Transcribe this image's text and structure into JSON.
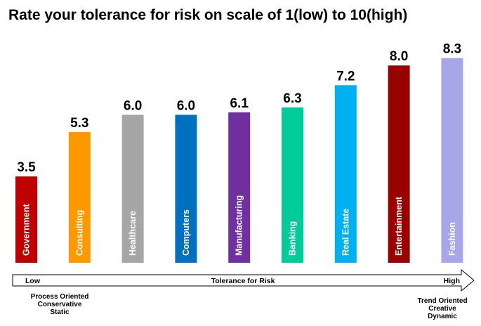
{
  "chart_data": {
    "type": "bar",
    "title": "Rate your tolerance for risk on scale of 1(low) to 10(high)",
    "categories": [
      "Government",
      "Consulting",
      "Healthcare",
      "Computers",
      "Manufacturing",
      "Banking",
      "Real Estate",
      "Entertainment",
      "Fashion"
    ],
    "values": [
      3.5,
      5.3,
      6.0,
      6.0,
      6.1,
      6.3,
      7.2,
      8.0,
      8.3
    ],
    "value_labels": [
      "3.5",
      "5.3",
      "6.0",
      "6.0",
      "6.1",
      "6.3",
      "7.2",
      "8.0",
      "8.3"
    ],
    "colors": [
      "#c00000",
      "#ff9900",
      "#a6a6a6",
      "#0070c0",
      "#7030a0",
      "#00cc99",
      "#00b0f0",
      "#990000",
      "#a6a6e8"
    ],
    "ylim": [
      0,
      10
    ],
    "grid": false,
    "axis": {
      "low_label": "Low",
      "center_label": "Tolerance for Risk",
      "high_label": "High"
    },
    "notes": {
      "low": [
        "Process Oriented",
        "Conservative",
        "Static"
      ],
      "high": [
        "Trend Oriented",
        "Creative",
        "Dynamic"
      ]
    }
  }
}
